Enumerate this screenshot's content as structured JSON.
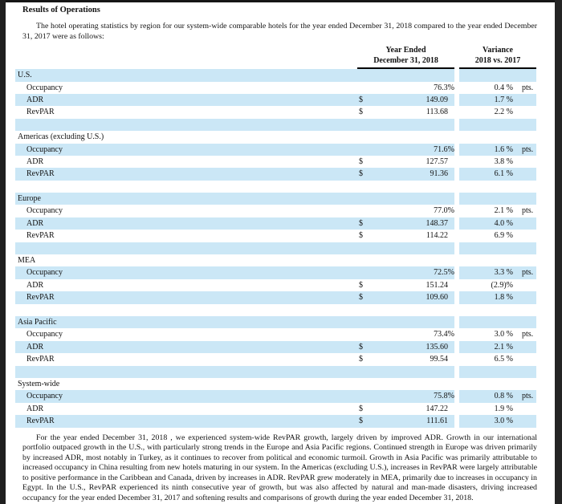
{
  "document": {
    "title": "Results of Operations",
    "intro_paragraph": "The hotel operating statistics by region for our system-wide comparable hotels for the year ended December 31, 2018 compared to the year ended December 31, 2017 were as follows:",
    "closing_paragraph": "For the year ended December 31, 2018 , we experienced system-wide RevPAR growth, largely driven by improved ADR. Growth in our international portfolio outpaced growth in the U.S., with particularly strong trends in the Europe and Asia Pacific regions. Continued strength in Europe was driven primarily by increased ADR, most notably in Turkey, as it continues to recover from political and economic turmoil. Growth in Asia Pacific was primarily attributable to increased occupancy in China resulting from new hotels maturing in our system. In the Americas (excluding U.S.), increases in RevPAR were largely attributable to positive performance in the Caribbean and Canada, driven by increases in ADR. RevPAR grew moderately in MEA, primarily due to increases in occupancy in Egypt. In the U.S., RevPAR experienced its ninth consecutive year of growth, but was also affected by natural and man-made disasters, driving increased occupancy for the year ended December 31, 2017 and softening results and comparisons of growth during the year ended December 31, 2018."
  },
  "table": {
    "row_shading_color": "#cbe7f6",
    "underline_color": "#000000",
    "column_headers": {
      "year_ended_line1": "Year Ended",
      "year_ended_line2": "December 31, 2018",
      "variance_line1": "Variance",
      "variance_line2": "2018 vs. 2017"
    },
    "sections": [
      {
        "label": "U.S.",
        "rows": [
          {
            "metric": "Occupancy",
            "currency": "",
            "value": "76.3%",
            "variance": "0.4 %",
            "unit": "pts."
          },
          {
            "metric": "ADR",
            "currency": "$",
            "value": "149.09",
            "variance": "1.7 %",
            "unit": ""
          },
          {
            "metric": "RevPAR",
            "currency": "$",
            "value": "113.68",
            "variance": "2.2 %",
            "unit": ""
          }
        ]
      },
      {
        "label": "Americas (excluding U.S.)",
        "rows": [
          {
            "metric": "Occupancy",
            "currency": "",
            "value": "71.6%",
            "variance": "1.6 %",
            "unit": "pts."
          },
          {
            "metric": "ADR",
            "currency": "$",
            "value": "127.57",
            "variance": "3.8 %",
            "unit": ""
          },
          {
            "metric": "RevPAR",
            "currency": "$",
            "value": "91.36",
            "variance": "6.1 %",
            "unit": ""
          }
        ]
      },
      {
        "label": "Europe",
        "rows": [
          {
            "metric": "Occupancy",
            "currency": "",
            "value": "77.0%",
            "variance": "2.1 %",
            "unit": "pts."
          },
          {
            "metric": "ADR",
            "currency": "$",
            "value": "148.37",
            "variance": "4.0 %",
            "unit": ""
          },
          {
            "metric": "RevPAR",
            "currency": "$",
            "value": "114.22",
            "variance": "6.9 %",
            "unit": ""
          }
        ]
      },
      {
        "label": "MEA",
        "rows": [
          {
            "metric": "Occupancy",
            "currency": "",
            "value": "72.5%",
            "variance": "3.3 %",
            "unit": "pts."
          },
          {
            "metric": "ADR",
            "currency": "$",
            "value": "151.24",
            "variance": "(2.9)%",
            "unit": ""
          },
          {
            "metric": "RevPAR",
            "currency": "$",
            "value": "109.60",
            "variance": "1.8 %",
            "unit": ""
          }
        ]
      },
      {
        "label": "Asia Pacific",
        "rows": [
          {
            "metric": "Occupancy",
            "currency": "",
            "value": "73.4%",
            "variance": "3.0 %",
            "unit": "pts."
          },
          {
            "metric": "ADR",
            "currency": "$",
            "value": "135.60",
            "variance": "2.1 %",
            "unit": ""
          },
          {
            "metric": "RevPAR",
            "currency": "$",
            "value": "99.54",
            "variance": "6.5 %",
            "unit": ""
          }
        ]
      },
      {
        "label": "System-wide",
        "rows": [
          {
            "metric": "Occupancy",
            "currency": "",
            "value": "75.8%",
            "variance": "0.8 %",
            "unit": "pts."
          },
          {
            "metric": "ADR",
            "currency": "$",
            "value": "147.22",
            "variance": "1.9 %",
            "unit": ""
          },
          {
            "metric": "RevPAR",
            "currency": "$",
            "value": "111.61",
            "variance": "3.0 %",
            "unit": ""
          }
        ]
      }
    ]
  }
}
